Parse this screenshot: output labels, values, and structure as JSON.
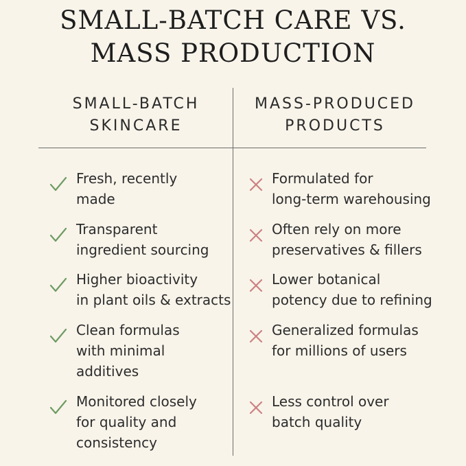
{
  "title": {
    "line1": "SMALL-BATCH CARE VS.",
    "line2": "MASS PRODUCTION"
  },
  "columns": {
    "left": {
      "heading_line1": "SMALL-BATCH",
      "heading_line2": "SKINCARE",
      "icon": "check-icon",
      "icon_color": "#6e9b62"
    },
    "right": {
      "heading_line1": "MASS-PRODUCED",
      "heading_line2": "PRODUCTS",
      "icon": "cross-icon",
      "icon_color": "#cc8080"
    }
  },
  "left_items": [
    {
      "line1": "Fresh, recently",
      "line2": "made",
      "line3": ""
    },
    {
      "line1": "Transparent",
      "line2": "ingredient sourcing",
      "line3": ""
    },
    {
      "line1": "Higher bioactivity",
      "line2": "in plant oils & extracts",
      "line3": ""
    },
    {
      "line1": "Clean formulas",
      "line2": "with minimal",
      "line3": "additives"
    },
    {
      "line1": "Monitored closely",
      "line2": "for quality and",
      "line3": "consistency"
    }
  ],
  "right_items": [
    {
      "line1": "Formulated for",
      "line2": "long-term warehousing"
    },
    {
      "line1": "Often rely on more",
      "line2": "preservatives & fillers"
    },
    {
      "line1": "Lower botanical",
      "line2": "potency due to refining"
    },
    {
      "line1": "Generalized formulas",
      "line2": "for millions of users"
    },
    {
      "line1": "Less control over",
      "line2": "batch quality"
    }
  ]
}
